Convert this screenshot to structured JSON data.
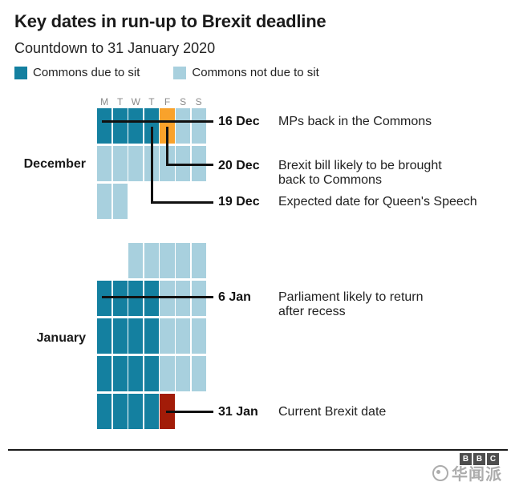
{
  "title": "Key dates in run-up to Brexit deadline",
  "subtitle": "Countdown to 31 January 2020",
  "legend": [
    {
      "label": "Commons due to sit",
      "status": "sit"
    },
    {
      "label": "Commons not due to sit",
      "status": "recess"
    }
  ],
  "chart_data": {
    "type": "heatmap",
    "title": "Key dates in run-up to Brexit deadline",
    "subtitle": "Countdown to 31 January 2020",
    "legend_entries": [
      "Commons due to sit",
      "Commons not due to sit"
    ],
    "day_columns": [
      "M",
      "T",
      "W",
      "T",
      "F",
      "S",
      "S"
    ],
    "colors": {
      "sit": "#1480a0",
      "recess": "#a8d0de",
      "bill": "#f9a22b",
      "brexit": "#a21c08"
    },
    "months": [
      {
        "label": "December",
        "show_day_headers": true,
        "weeks": [
          [
            "sit",
            "sit",
            "sit",
            "sit",
            "bill",
            "recess",
            "recess"
          ],
          [
            "recess",
            "recess",
            "recess",
            "recess",
            "recess",
            "recess",
            "recess"
          ],
          [
            "recess",
            "recess",
            null,
            null,
            null,
            null,
            null
          ]
        ]
      },
      {
        "label": "January",
        "show_day_headers": false,
        "weeks": [
          [
            null,
            null,
            "recess",
            "recess",
            "recess",
            "recess",
            "recess"
          ],
          [
            "sit",
            "sit",
            "sit",
            "sit",
            "recess",
            "recess",
            "recess"
          ],
          [
            "sit",
            "sit",
            "sit",
            "sit",
            "recess",
            "recess",
            "recess"
          ],
          [
            "sit",
            "sit",
            "sit",
            "sit",
            "recess",
            "recess",
            "recess"
          ],
          [
            "sit",
            "sit",
            "sit",
            "sit",
            "brexit",
            null,
            null
          ]
        ]
      }
    ],
    "annotations": [
      {
        "date": "16 Dec",
        "lines": [
          "MPs back in the Commons"
        ]
      },
      {
        "date": "20 Dec",
        "lines": [
          "Brexit bill likely to be brought",
          "back to Commons"
        ]
      },
      {
        "date": "19 Dec",
        "lines": [
          "Expected date for Queen's Speech"
        ]
      },
      {
        "date": "6 Jan",
        "lines": [
          "Parliament likely to return",
          "after recess"
        ]
      },
      {
        "date": "31 Jan",
        "lines": [
          "Current Brexit date"
        ]
      }
    ]
  },
  "footer": {
    "logo_letters": [
      "B",
      "B",
      "C"
    ],
    "watermark": "华闻派"
  }
}
